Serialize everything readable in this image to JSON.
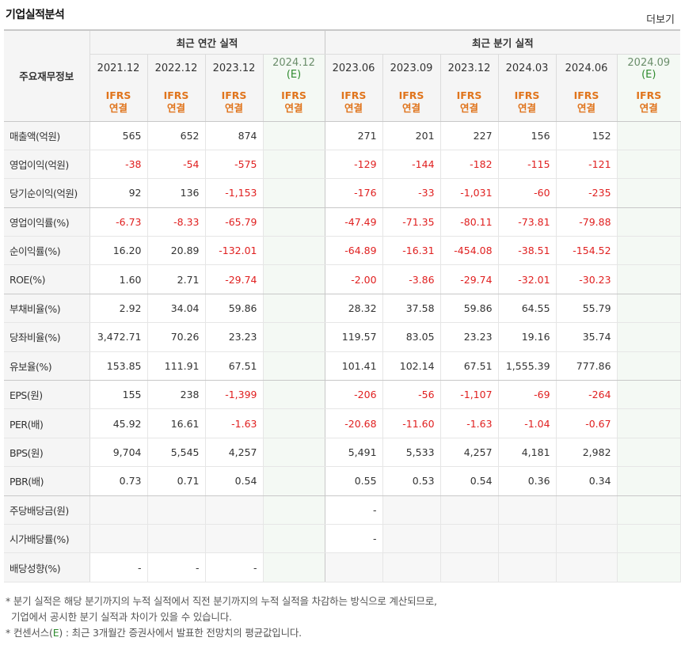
{
  "header": {
    "title": "기업실적분석",
    "more_label": "더보기"
  },
  "table": {
    "row_header": "주요재무정보",
    "group_annual": "최근 연간 실적",
    "group_quarter": "최근 분기 실적",
    "annual_periods": [
      {
        "year": "2021.12",
        "est": ""
      },
      {
        "year": "2022.12",
        "est": ""
      },
      {
        "year": "2023.12",
        "est": ""
      },
      {
        "year": "2024.12",
        "est": "(E)"
      }
    ],
    "quarter_periods": [
      {
        "year": "2023.06",
        "est": ""
      },
      {
        "year": "2023.09",
        "est": ""
      },
      {
        "year": "2023.12",
        "est": ""
      },
      {
        "year": "2024.03",
        "est": ""
      },
      {
        "year": "2024.06",
        "est": ""
      },
      {
        "year": "2024.09",
        "est": "(E)"
      }
    ],
    "basis_top": "IFRS",
    "basis_bottom": "연결",
    "rows": [
      {
        "label": "매출액(억원)",
        "a": [
          "565",
          "652",
          "874",
          ""
        ],
        "q": [
          "271",
          "201",
          "227",
          "156",
          "152",
          ""
        ]
      },
      {
        "label": "영업이익(억원)",
        "a": [
          "-38",
          "-54",
          "-575",
          ""
        ],
        "q": [
          "-129",
          "-144",
          "-182",
          "-115",
          "-121",
          ""
        ]
      },
      {
        "label": "당기순이익(억원)",
        "a": [
          "92",
          "136",
          "-1,153",
          ""
        ],
        "q": [
          "-176",
          "-33",
          "-1,031",
          "-60",
          "-235",
          ""
        ]
      },
      {
        "label": "영업이익률(%)",
        "a": [
          "-6.73",
          "-8.33",
          "-65.79",
          ""
        ],
        "q": [
          "-47.49",
          "-71.35",
          "-80.11",
          "-73.81",
          "-79.88",
          ""
        ]
      },
      {
        "label": "순이익률(%)",
        "a": [
          "16.20",
          "20.89",
          "-132.01",
          ""
        ],
        "q": [
          "-64.89",
          "-16.31",
          "-454.08",
          "-38.51",
          "-154.52",
          ""
        ]
      },
      {
        "label": "ROE(%)",
        "a": [
          "1.60",
          "2.71",
          "-29.74",
          ""
        ],
        "q": [
          "-2.00",
          "-3.86",
          "-29.74",
          "-32.01",
          "-30.23",
          ""
        ]
      },
      {
        "label": "부채비율(%)",
        "a": [
          "2.92",
          "34.04",
          "59.86",
          ""
        ],
        "q": [
          "28.32",
          "37.58",
          "59.86",
          "64.55",
          "55.79",
          ""
        ]
      },
      {
        "label": "당좌비율(%)",
        "a": [
          "3,472.71",
          "70.26",
          "23.23",
          ""
        ],
        "q": [
          "119.57",
          "83.05",
          "23.23",
          "19.16",
          "35.74",
          ""
        ]
      },
      {
        "label": "유보율(%)",
        "a": [
          "153.85",
          "111.91",
          "67.51",
          ""
        ],
        "q": [
          "101.41",
          "102.14",
          "67.51",
          "1,555.39",
          "777.86",
          ""
        ]
      },
      {
        "label": "EPS(원)",
        "a": [
          "155",
          "238",
          "-1,399",
          ""
        ],
        "q": [
          "-206",
          "-56",
          "-1,107",
          "-69",
          "-264",
          ""
        ]
      },
      {
        "label": "PER(배)",
        "a": [
          "45.92",
          "16.61",
          "-1.63",
          ""
        ],
        "q": [
          "-20.68",
          "-11.60",
          "-1.63",
          "-1.04",
          "-0.67",
          ""
        ]
      },
      {
        "label": "BPS(원)",
        "a": [
          "9,704",
          "5,545",
          "4,257",
          ""
        ],
        "q": [
          "5,491",
          "5,533",
          "4,257",
          "4,181",
          "2,982",
          ""
        ]
      },
      {
        "label": "PBR(배)",
        "a": [
          "0.73",
          "0.71",
          "0.54",
          ""
        ],
        "q": [
          "0.55",
          "0.53",
          "0.54",
          "0.36",
          "0.34",
          ""
        ]
      },
      {
        "label": "주당배당금(원)",
        "a": [
          "",
          "",
          "",
          ""
        ],
        "q": [
          "-",
          "",
          "",
          "",
          "",
          ""
        ]
      },
      {
        "label": "시가배당률(%)",
        "a": [
          "",
          "",
          "",
          ""
        ],
        "q": [
          "-",
          "",
          "",
          "",
          "",
          ""
        ]
      },
      {
        "label": "배당성향(%)",
        "a": [
          "-",
          "-",
          "-",
          ""
        ],
        "q": [
          "",
          "",
          "",
          "",
          "",
          ""
        ]
      }
    ]
  },
  "notes": {
    "line1": "분기 실적은 해당 분기까지의 누적 실적에서 직전 분기까지의 누적 실적을 차감하는 방식으로 계산되므로,",
    "line2": "기업에서 공시한 분기 실적과 차이가 있을 수 있습니다.",
    "line3_prefix": "컨센서스(",
    "line3_e": "E",
    "line3_suffix": ") : 최근 3개월간 증권사에서 발표한 전망치의 평균값입니다."
  },
  "colors": {
    "negative": "#e02020",
    "basis": "#e0741c",
    "estimate": "#2e8b2e"
  }
}
